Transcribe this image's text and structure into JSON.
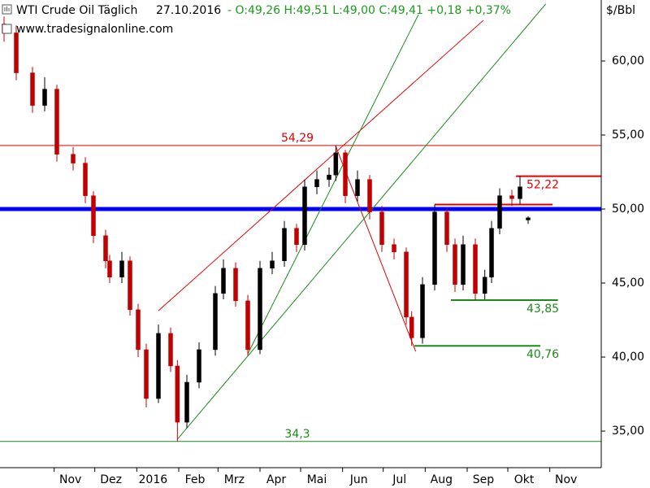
{
  "chart_data": {
    "type": "candlestick",
    "title": "WTI Crude Oil Täglich",
    "date": "27.10.2016",
    "quote": "- O:49,26 H:49,51 L:49,00 C:49,41 +0,18 +0,37%",
    "source": "www.tradesignalonline.com",
    "y_label": "$/Bbl",
    "up_color": "#000000",
    "down_color": "#c00000",
    "xlim": [
      -9,
      435
    ],
    "ylim": [
      32.53,
      64.12
    ],
    "xticks": [
      {
        "value": 31,
        "label": "Nov"
      },
      {
        "value": 61,
        "label": "Dez"
      },
      {
        "value": 92,
        "label": "2016"
      },
      {
        "value": 123,
        "label": "Feb"
      },
      {
        "value": 152,
        "label": "Mrz"
      },
      {
        "value": 183,
        "label": "Apr"
      },
      {
        "value": 213,
        "label": "Mai"
      },
      {
        "value": 244,
        "label": "Jun"
      },
      {
        "value": 274,
        "label": "Jul"
      },
      {
        "value": 305,
        "label": "Aug"
      },
      {
        "value": 336,
        "label": "Sep"
      },
      {
        "value": 366,
        "label": "Okt"
      },
      {
        "value": 397,
        "label": "Nov"
      }
    ],
    "yticks": [
      {
        "value": 35,
        "label": "35,00"
      },
      {
        "value": 40,
        "label": "40,00"
      },
      {
        "value": 45,
        "label": "45,00"
      },
      {
        "value": 50,
        "label": "50,00"
      },
      {
        "value": 55,
        "label": "55,00"
      },
      {
        "value": 60,
        "label": "60,00"
      }
    ],
    "x": [
      -6,
      3,
      15,
      24,
      33,
      45,
      54,
      60,
      69,
      72,
      81,
      87,
      93,
      99,
      108,
      117,
      122,
      129,
      138,
      150,
      156,
      165,
      174,
      183,
      192,
      201,
      210,
      216,
      225,
      234,
      239,
      246,
      255,
      264,
      273,
      282,
      291,
      295,
      303,
      312,
      321,
      327,
      333,
      342,
      349,
      354,
      360,
      369,
      375,
      381
    ],
    "open": [
      62.5,
      61.9,
      59.2,
      57.0,
      58.1,
      53.7,
      53.1,
      50.9,
      48.2,
      46.5,
      45.4,
      46.5,
      43.2,
      40.5,
      37.2,
      41.6,
      39.4,
      35.6,
      38.3,
      40.5,
      44.3,
      46.0,
      43.8,
      40.5,
      46.0,
      46.5,
      48.7,
      47.6,
      51.5,
      52.0,
      52.3,
      53.8,
      50.9,
      52.0,
      49.8,
      47.6,
      47.1,
      42.7,
      41.3,
      44.9,
      49.8,
      47.6,
      44.9,
      47.6,
      44.3,
      45.4,
      48.7,
      50.9,
      50.7,
      49.26
    ],
    "high": [
      63.0,
      62.4,
      59.6,
      58.9,
      58.4,
      54.2,
      53.5,
      51.2,
      48.6,
      46.9,
      47.1,
      46.8,
      43.6,
      40.9,
      42.2,
      42.0,
      39.8,
      38.8,
      41.0,
      44.8,
      46.6,
      46.4,
      44.2,
      46.5,
      47.1,
      49.2,
      49.0,
      52.0,
      52.6,
      52.8,
      54.29,
      54.0,
      52.6,
      52.3,
      50.2,
      48.0,
      47.4,
      43.1,
      45.4,
      50.3,
      50.1,
      48.0,
      48.2,
      48.0,
      45.9,
      49.2,
      51.4,
      51.3,
      52.22,
      49.51
    ],
    "low": [
      61.3,
      58.7,
      56.5,
      56.6,
      53.2,
      52.6,
      50.4,
      47.7,
      46.0,
      45.0,
      45.0,
      42.8,
      40.0,
      36.6,
      36.9,
      39.0,
      34.3,
      35.2,
      37.9,
      40.1,
      43.9,
      43.4,
      40.1,
      40.2,
      45.6,
      46.1,
      47.1,
      47.2,
      51.0,
      51.5,
      51.9,
      50.4,
      50.5,
      49.3,
      47.1,
      46.6,
      42.2,
      40.76,
      40.9,
      44.5,
      47.1,
      44.4,
      44.5,
      43.85,
      43.9,
      45.0,
      48.3,
      50.2,
      50.3,
      49.0
    ],
    "close": [
      61.9,
      59.2,
      57.0,
      58.1,
      53.7,
      53.1,
      50.9,
      48.2,
      46.5,
      45.4,
      46.5,
      43.2,
      40.5,
      37.2,
      41.6,
      39.4,
      35.6,
      38.3,
      40.5,
      44.3,
      46.0,
      43.8,
      40.5,
      46.0,
      46.5,
      48.7,
      47.6,
      51.5,
      52.0,
      52.3,
      53.8,
      50.9,
      52.0,
      49.8,
      47.6,
      47.1,
      42.7,
      41.3,
      44.9,
      49.8,
      47.6,
      44.9,
      47.6,
      44.3,
      45.4,
      48.7,
      50.9,
      50.7,
      51.5,
      49.41
    ],
    "levels": [
      {
        "value": 54.29,
        "label": "54,29",
        "color": "#e00000",
        "width": 1
      },
      {
        "value": 50,
        "color": "#0000ff",
        "width": 5
      },
      {
        "value": 34.3,
        "label": "34,3",
        "color": "#1a8c1a",
        "width": 1
      },
      {
        "value": 52.22,
        "label": "52,22",
        "color": "#e00000",
        "width": 2,
        "from": 372,
        "to": 435
      },
      {
        "value": 50.3,
        "color": "#e00000",
        "width": 2,
        "from": 312,
        "to": 399
      },
      {
        "value": 43.85,
        "label": "43,85",
        "color": "#1a8c1a",
        "width": 2,
        "from": 324,
        "to": 403
      },
      {
        "value": 40.76,
        "label": "40,76",
        "color": "#1a8c1a",
        "width": 2,
        "from": 297,
        "to": 390
      }
    ],
    "trendlines": [
      {
        "x": [
          108,
          348
        ],
        "y": [
          43.13,
          62.75
        ],
        "color": "#e00000"
      },
      {
        "x": [
          239,
          298
        ],
        "y": [
          54.23,
          40.38
        ],
        "color": "#e00000"
      },
      {
        "x": [
          122,
          394
        ],
        "y": [
          34.45,
          63.85
        ],
        "color": "#1a8c1a"
      },
      {
        "x": [
          174,
          300
        ],
        "y": [
          40.22,
          63.13
        ],
        "color": "#1a8c1a"
      }
    ]
  }
}
